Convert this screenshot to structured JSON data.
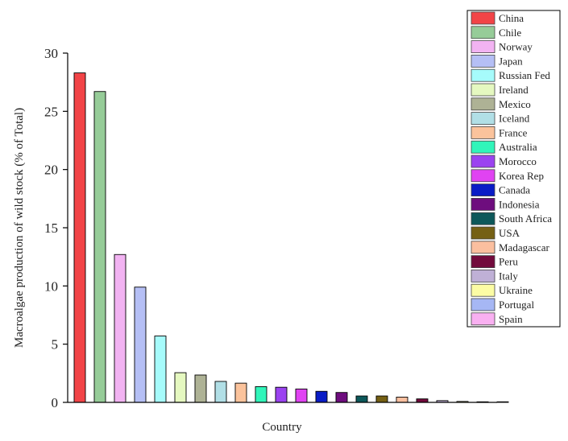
{
  "chart_data": {
    "type": "bar",
    "title": "",
    "xlabel": "Country",
    "ylabel": "Macroalgae production of wild stock (% of Total)",
    "ylim": [
      0,
      30
    ],
    "yticks": [
      0,
      5,
      10,
      15,
      20,
      25,
      30
    ],
    "grid": false,
    "legend_position": "top-right",
    "categories": [
      "China",
      "Chile",
      "Norway",
      "Japan",
      "Russian Fed",
      "Ireland",
      "Mexico",
      "Iceland",
      "France",
      "Australia",
      "Morocco",
      "Korea Rep",
      "Canada",
      "Indonesia",
      "South Africa",
      "USA",
      "Madagascar",
      "Peru",
      "Italy",
      "Ukraine",
      "Portugal",
      "Spain"
    ],
    "values": [
      28.3,
      26.7,
      12.7,
      9.9,
      5.7,
      2.55,
      2.35,
      1.8,
      1.65,
      1.35,
      1.3,
      1.15,
      0.95,
      0.85,
      0.55,
      0.55,
      0.45,
      0.3,
      0.15,
      0.08,
      0.05,
      0.05
    ],
    "colors": [
      "#f24447",
      "#96cc98",
      "#f2b3f2",
      "#b5bff5",
      "#a6fbfb",
      "#e5f8c0",
      "#aeb295",
      "#b1dfe6",
      "#fbc39c",
      "#31f5ba",
      "#9b43f0",
      "#e043f2",
      "#0a1cc6",
      "#6e0d7e",
      "#0d585a",
      "#756014",
      "#fbbf9f",
      "#720a3c",
      "#bfb0d6",
      "#fcfca4",
      "#a6b7f4",
      "#f9b0f1"
    ]
  }
}
